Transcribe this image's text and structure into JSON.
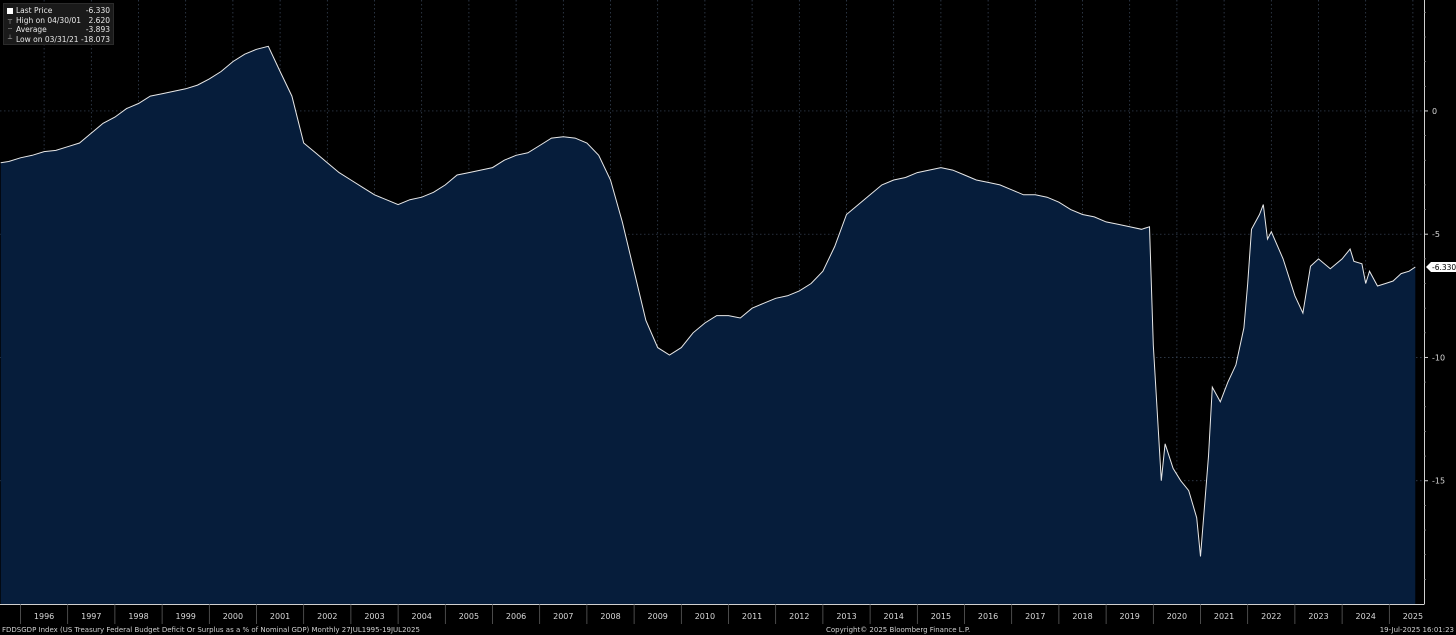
{
  "legend": {
    "rows": [
      {
        "label": "Last Price",
        "value": "-6.330",
        "marker": "swatch"
      },
      {
        "label": "High on 04/30/01",
        "value": "2.620",
        "marker": "tick"
      },
      {
        "label": "Average",
        "value": "-3.893",
        "marker": "tick"
      },
      {
        "label": "Low on 03/31/21",
        "value": "-18.073",
        "marker": "tick"
      }
    ]
  },
  "footer": {
    "left": "FDDSGDP Index (US Treasury Federal Budget Deficit Or Surplus as a % of Nominal GDP)  Monthly 27JUL1995-19JUL2025",
    "center": "Copyright© 2025 Bloomberg Finance L.P.",
    "right": "19-Jul-2025 16:01:23"
  },
  "last_price_badge": "-6.330",
  "colors": {
    "background": "#000000",
    "area_fill": "#061d3b",
    "line": "#e8e8e8",
    "grid": "#3c4a5e"
  },
  "chart_data": {
    "type": "area",
    "title": "",
    "xlabel": "",
    "ylabel": "",
    "ylim": [
      -20,
      4.5
    ],
    "y_ticks": [
      0,
      -5,
      -10,
      -15
    ],
    "y_tick_labels": [
      "0",
      "-5",
      "-10",
      "-15"
    ],
    "x_tick_labels": [
      "1996",
      "1997",
      "1998",
      "1999",
      "2000",
      "2001",
      "2002",
      "2003",
      "2004",
      "2005",
      "2006",
      "2007",
      "2008",
      "2009",
      "2010",
      "2011",
      "2012",
      "2013",
      "2014",
      "2015",
      "2016",
      "2017",
      "2018",
      "2019",
      "2020",
      "2021",
      "2022",
      "2023",
      "2024",
      "2025"
    ],
    "grid": true,
    "legend_position": "top-left",
    "series": [
      {
        "name": "Last Price",
        "points": [
          [
            1995.58,
            -2.1
          ],
          [
            1995.75,
            -2.05
          ],
          [
            1996.0,
            -1.9
          ],
          [
            1996.25,
            -1.8
          ],
          [
            1996.5,
            -1.65
          ],
          [
            1996.75,
            -1.6
          ],
          [
            1997.0,
            -1.45
          ],
          [
            1997.25,
            -1.3
          ],
          [
            1997.5,
            -0.9
          ],
          [
            1997.75,
            -0.5
          ],
          [
            1998.0,
            -0.25
          ],
          [
            1998.25,
            0.1
          ],
          [
            1998.5,
            0.3
          ],
          [
            1998.75,
            0.6
          ],
          [
            1999.0,
            0.7
          ],
          [
            1999.25,
            0.8
          ],
          [
            1999.5,
            0.9
          ],
          [
            1999.75,
            1.05
          ],
          [
            2000.0,
            1.3
          ],
          [
            2000.25,
            1.6
          ],
          [
            2000.5,
            2.0
          ],
          [
            2000.75,
            2.3
          ],
          [
            2001.0,
            2.5
          ],
          [
            2001.25,
            2.62
          ],
          [
            2001.5,
            1.6
          ],
          [
            2001.75,
            0.6
          ],
          [
            2002.0,
            -1.3
          ],
          [
            2002.25,
            -1.7
          ],
          [
            2002.5,
            -2.1
          ],
          [
            2002.75,
            -2.5
          ],
          [
            2003.0,
            -2.8
          ],
          [
            2003.25,
            -3.1
          ],
          [
            2003.5,
            -3.4
          ],
          [
            2003.75,
            -3.6
          ],
          [
            2004.0,
            -3.8
          ],
          [
            2004.25,
            -3.6
          ],
          [
            2004.5,
            -3.5
          ],
          [
            2004.75,
            -3.3
          ],
          [
            2005.0,
            -3.0
          ],
          [
            2005.25,
            -2.6
          ],
          [
            2005.5,
            -2.5
          ],
          [
            2005.75,
            -2.4
          ],
          [
            2006.0,
            -2.3
          ],
          [
            2006.25,
            -2.0
          ],
          [
            2006.5,
            -1.8
          ],
          [
            2006.75,
            -1.7
          ],
          [
            2007.0,
            -1.4
          ],
          [
            2007.25,
            -1.1
          ],
          [
            2007.5,
            -1.05
          ],
          [
            2007.75,
            -1.1
          ],
          [
            2008.0,
            -1.3
          ],
          [
            2008.25,
            -1.8
          ],
          [
            2008.5,
            -2.8
          ],
          [
            2008.75,
            -4.5
          ],
          [
            2009.0,
            -6.5
          ],
          [
            2009.25,
            -8.5
          ],
          [
            2009.5,
            -9.6
          ],
          [
            2009.75,
            -9.9
          ],
          [
            2010.0,
            -9.6
          ],
          [
            2010.25,
            -9.0
          ],
          [
            2010.5,
            -8.6
          ],
          [
            2010.75,
            -8.3
          ],
          [
            2011.0,
            -8.3
          ],
          [
            2011.25,
            -8.4
          ],
          [
            2011.5,
            -8.0
          ],
          [
            2011.75,
            -7.8
          ],
          [
            2012.0,
            -7.6
          ],
          [
            2012.25,
            -7.5
          ],
          [
            2012.5,
            -7.3
          ],
          [
            2012.75,
            -7.0
          ],
          [
            2013.0,
            -6.5
          ],
          [
            2013.25,
            -5.5
          ],
          [
            2013.5,
            -4.2
          ],
          [
            2013.75,
            -3.8
          ],
          [
            2014.0,
            -3.4
          ],
          [
            2014.25,
            -3.0
          ],
          [
            2014.5,
            -2.8
          ],
          [
            2014.75,
            -2.7
          ],
          [
            2015.0,
            -2.5
          ],
          [
            2015.25,
            -2.4
          ],
          [
            2015.5,
            -2.3
          ],
          [
            2015.75,
            -2.4
          ],
          [
            2016.0,
            -2.6
          ],
          [
            2016.25,
            -2.8
          ],
          [
            2016.5,
            -2.9
          ],
          [
            2016.75,
            -3.0
          ],
          [
            2017.0,
            -3.2
          ],
          [
            2017.25,
            -3.4
          ],
          [
            2017.5,
            -3.4
          ],
          [
            2017.75,
            -3.5
          ],
          [
            2018.0,
            -3.7
          ],
          [
            2018.25,
            -4.0
          ],
          [
            2018.5,
            -4.2
          ],
          [
            2018.75,
            -4.3
          ],
          [
            2019.0,
            -4.5
          ],
          [
            2019.25,
            -4.6
          ],
          [
            2019.5,
            -4.7
          ],
          [
            2019.75,
            -4.8
          ],
          [
            2019.92,
            -4.7
          ],
          [
            2020.0,
            -9.5
          ],
          [
            2020.17,
            -15.0
          ],
          [
            2020.25,
            -13.5
          ],
          [
            2020.42,
            -14.5
          ],
          [
            2020.58,
            -15.0
          ],
          [
            2020.75,
            -15.4
          ],
          [
            2020.92,
            -16.5
          ],
          [
            2021.0,
            -18.07
          ],
          [
            2021.17,
            -14.0
          ],
          [
            2021.25,
            -11.2
          ],
          [
            2021.42,
            -11.8
          ],
          [
            2021.58,
            -11.0
          ],
          [
            2021.75,
            -10.3
          ],
          [
            2021.92,
            -8.8
          ],
          [
            2022.0,
            -7.0
          ],
          [
            2022.08,
            -4.8
          ],
          [
            2022.25,
            -4.2
          ],
          [
            2022.33,
            -3.8
          ],
          [
            2022.42,
            -5.2
          ],
          [
            2022.5,
            -4.9
          ],
          [
            2022.75,
            -6.0
          ],
          [
            2023.0,
            -7.5
          ],
          [
            2023.17,
            -8.2
          ],
          [
            2023.33,
            -6.3
          ],
          [
            2023.5,
            -6.0
          ],
          [
            2023.75,
            -6.4
          ],
          [
            2024.0,
            -6.0
          ],
          [
            2024.17,
            -5.6
          ],
          [
            2024.25,
            -6.1
          ],
          [
            2024.42,
            -6.2
          ],
          [
            2024.5,
            -7.0
          ],
          [
            2024.58,
            -6.5
          ],
          [
            2024.75,
            -7.1
          ],
          [
            2024.92,
            -7.0
          ],
          [
            2025.08,
            -6.9
          ],
          [
            2025.25,
            -6.6
          ],
          [
            2025.42,
            -6.5
          ],
          [
            2025.55,
            -6.33
          ]
        ]
      }
    ]
  }
}
